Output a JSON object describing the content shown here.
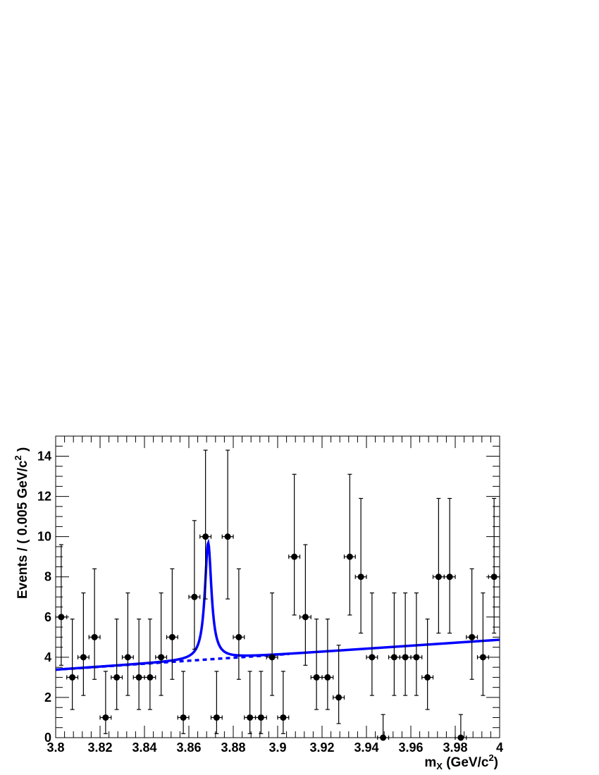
{
  "chart_data": {
    "type": "scatter",
    "xlabel": {
      "main": "m",
      "sub": "X",
      "rest": " (GeV/c",
      "sup": "2",
      "close": ")"
    },
    "ylabel": {
      "main": "Events / ( 0.005 GeV/c",
      "sup": "2",
      "close": " )"
    },
    "xlim": [
      3.8,
      4.0
    ],
    "ylim": [
      0,
      15
    ],
    "x_ticks": [
      3.8,
      3.82,
      3.84,
      3.86,
      3.88,
      3.9,
      3.92,
      3.94,
      3.96,
      3.98,
      4.0
    ],
    "x_tick_labels": [
      "3.8",
      "3.82",
      "3.84",
      "3.86",
      "3.88",
      "3.9",
      "3.92",
      "3.94",
      "3.96",
      "3.98",
      "4"
    ],
    "y_ticks": [
      0,
      2,
      4,
      6,
      8,
      10,
      12,
      14
    ],
    "y_tick_labels": [
      "0",
      "2",
      "4",
      "6",
      "8",
      "10",
      "12",
      "14"
    ],
    "bin_width": 0.005,
    "points": {
      "x": [
        3.8025,
        3.8075,
        3.8125,
        3.8175,
        3.8225,
        3.8275,
        3.8325,
        3.8375,
        3.8425,
        3.8475,
        3.8525,
        3.8575,
        3.8625,
        3.8675,
        3.8725,
        3.8775,
        3.8825,
        3.8875,
        3.8925,
        3.8975,
        3.9025,
        3.9075,
        3.9125,
        3.9175,
        3.9225,
        3.9275,
        3.9325,
        3.9375,
        3.9425,
        3.9475,
        3.9525,
        3.9575,
        3.9625,
        3.9675,
        3.9725,
        3.9775,
        3.9825,
        3.9875,
        3.9925,
        3.9975
      ],
      "y": [
        6,
        3,
        4,
        5,
        1,
        3,
        4,
        3,
        3,
        4,
        5,
        1,
        7,
        10,
        1,
        10,
        5,
        1,
        1,
        4,
        1,
        9,
        6,
        3,
        3,
        2,
        9,
        8,
        4,
        0,
        4,
        4,
        4,
        3,
        8,
        8,
        0,
        5,
        4,
        8
      ],
      "y_err_low": [
        2.4,
        1.6,
        1.9,
        2.1,
        0.8,
        1.6,
        1.9,
        1.6,
        1.6,
        1.9,
        2.1,
        0.8,
        2.6,
        3.1,
        0.8,
        3.1,
        2.1,
        0.8,
        0.8,
        1.9,
        0.8,
        2.9,
        2.4,
        1.6,
        1.6,
        1.3,
        2.9,
        2.8,
        1.9,
        0,
        1.9,
        1.9,
        1.9,
        1.6,
        2.8,
        2.8,
        0,
        2.1,
        1.9,
        2.8
      ],
      "y_err_high": [
        3.6,
        2.9,
        3.2,
        3.4,
        2.3,
        2.9,
        3.2,
        2.9,
        2.9,
        3.2,
        3.4,
        2.3,
        3.8,
        4.3,
        2.3,
        4.3,
        3.4,
        2.3,
        2.3,
        3.2,
        2.3,
        4.1,
        3.6,
        2.9,
        2.9,
        2.6,
        4.1,
        3.9,
        3.2,
        1.15,
        3.2,
        3.2,
        3.2,
        2.9,
        3.9,
        3.9,
        1.15,
        3.4,
        3.2,
        3.9
      ]
    },
    "fit_total": {
      "color": "#0000ff",
      "style": "solid",
      "background_line": [
        [
          3.8,
          3.38
        ],
        [
          4.0,
          4.87
        ]
      ],
      "peak": {
        "mass": 3.8687,
        "amplitude": 5.8,
        "half_width": 0.0018
      }
    },
    "fit_background": {
      "color": "#0000ff",
      "style": "dashed",
      "line": [
        [
          3.8,
          3.38
        ],
        [
          4.0,
          4.87
        ]
      ]
    }
  }
}
